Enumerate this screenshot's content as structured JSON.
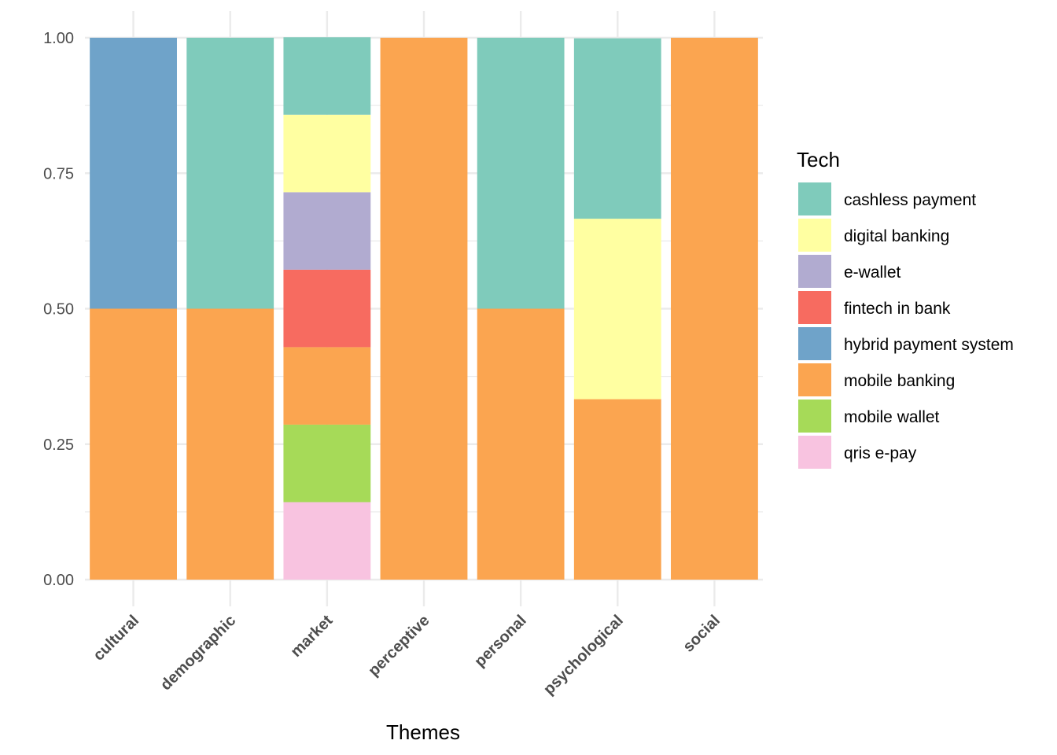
{
  "chart_data": {
    "type": "bar",
    "stacked": true,
    "categories": [
      "cultural",
      "demographic",
      "market",
      "perceptive",
      "personal",
      "psychological",
      "social"
    ],
    "xlabel": "Themes",
    "ylabel": "",
    "ylim": [
      0,
      1
    ],
    "yticks": [
      "0.00",
      "0.25",
      "0.50",
      "0.75",
      "1.00"
    ],
    "grid": true,
    "legend_position": "right",
    "legend_title": "Tech",
    "series": [
      {
        "name": "cashless payment",
        "color": "#7fcbbb",
        "values": [
          0,
          0.5,
          0.143,
          0,
          0.5,
          0.333,
          0
        ]
      },
      {
        "name": "digital banking",
        "color": "#ffffa1",
        "values": [
          0,
          0,
          0.143,
          0,
          0,
          0.333,
          0
        ]
      },
      {
        "name": "e-wallet",
        "color": "#b1abd0",
        "values": [
          0,
          0,
          0.143,
          0,
          0,
          0,
          0
        ]
      },
      {
        "name": "fintech in bank",
        "color": "#f76b60",
        "values": [
          0,
          0,
          0.143,
          0,
          0,
          0,
          0
        ]
      },
      {
        "name": "hybrid payment system",
        "color": "#6fa3c9",
        "values": [
          0.5,
          0,
          0,
          0,
          0,
          0,
          0
        ]
      },
      {
        "name": "mobile banking",
        "color": "#fba550",
        "values": [
          0.5,
          0.5,
          0.143,
          1,
          0.5,
          0.333,
          1
        ]
      },
      {
        "name": "mobile wallet",
        "color": "#a6da58",
        "values": [
          0,
          0,
          0.143,
          0,
          0,
          0,
          0
        ]
      },
      {
        "name": "qris e-pay",
        "color": "#f8c3e0",
        "values": [
          0,
          0,
          0.143,
          0,
          0,
          0,
          0
        ]
      }
    ]
  }
}
